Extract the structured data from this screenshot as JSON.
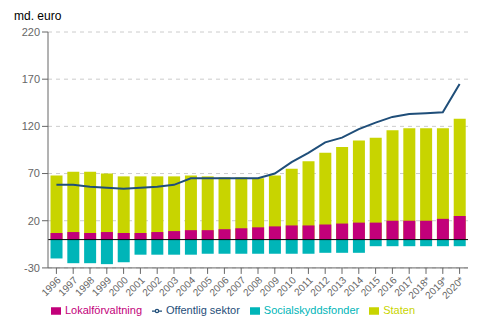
{
  "chart_data": {
    "type": "bar",
    "ylabel": "md. euro",
    "categories": [
      "1996",
      "1997",
      "1998",
      "1999",
      "2000",
      "2001",
      "2002",
      "2003",
      "2004",
      "2005",
      "2006",
      "2007",
      "2008",
      "2009",
      "2010",
      "2011",
      "2012",
      "2013",
      "2014",
      "2015",
      "2016",
      "2017",
      "2018*",
      "2019*",
      "2020*"
    ],
    "series": [
      {
        "name": "Staten",
        "type": "bar",
        "color": "#c8d400",
        "values": [
          68,
          72,
          72,
          70,
          67,
          67,
          67,
          67,
          68,
          67,
          66,
          66,
          65,
          68,
          75,
          83,
          92,
          98,
          105,
          108,
          116,
          118,
          118,
          118,
          128
        ]
      },
      {
        "name": "Lokalförvaltning",
        "type": "bar",
        "color": "#c2007a",
        "values": [
          7,
          8,
          7,
          8,
          7,
          7,
          8,
          9,
          10,
          10,
          11,
          12,
          13,
          14,
          15,
          15,
          16,
          17,
          18,
          18,
          20,
          20,
          20,
          22,
          25
        ]
      },
      {
        "name": "Socialskyddsfonder",
        "type": "bar",
        "color": "#00b5b8",
        "values": [
          -20,
          -25,
          -25,
          -26,
          -24,
          -16,
          -16,
          -16,
          -16,
          -15,
          -15,
          -15,
          -15,
          -15,
          -15,
          -15,
          -14,
          -14,
          -14,
          -7,
          -7,
          -7,
          -7,
          -7,
          -7
        ]
      },
      {
        "name": "Offentlig sektor",
        "type": "line",
        "color": "#1f4e79",
        "values": [
          58,
          58,
          56,
          55,
          54,
          55,
          56,
          58,
          65,
          65,
          65,
          65,
          65,
          70,
          82,
          92,
          103,
          108,
          117,
          124,
          130,
          133,
          134,
          135,
          165
        ]
      }
    ],
    "ylim": [
      -30,
      220
    ],
    "yticks": [
      -30,
      20,
      70,
      120,
      170,
      220
    ],
    "grid": true,
    "legend": "bottom"
  }
}
